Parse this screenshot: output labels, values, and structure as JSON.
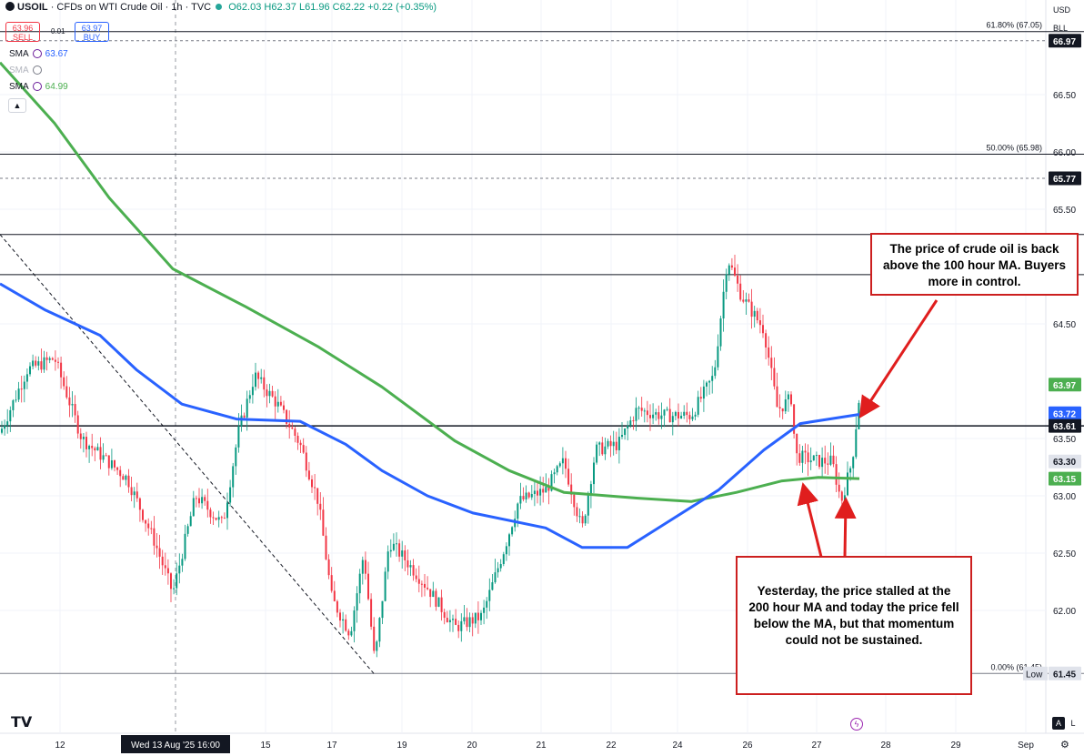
{
  "header": {
    "symbol": "USOIL",
    "description": "· CFDs on WTI Crude Oil · 1h · TVC",
    "open": "O62.03",
    "high": "H62.37",
    "low": "L61.96",
    "close": "C62.22",
    "change": "+0.22 (+0.35%)"
  },
  "trade": {
    "sell_price": "63.96",
    "sell_label": "SELL",
    "spread": "0.01",
    "buy_price": "63.97",
    "buy_label": "BUY"
  },
  "indicators": [
    {
      "name": "SMA",
      "value": "63.67",
      "color": "#2962ff"
    },
    {
      "name": "SMA",
      "value": "",
      "color": "#b2b5be"
    },
    {
      "name": "SMA",
      "value": "64.99",
      "color": "#4caf50"
    }
  ],
  "axis_controls": {
    "currency": "USD",
    "unit": "BLL"
  },
  "annotations": {
    "top": "The  price of crude oil is back above the 100 hour MA. Buyers more in control.",
    "bottom": "Yesterday, the price stalled at the 200 hour MA and today the price fell below the MA, but that momentum could not be sustained."
  },
  "bottom_buttons": {
    "log": "L",
    "auto": "A"
  },
  "chart_data": {
    "type": "candlestick",
    "ylim": [
      61.2,
      67.3
    ],
    "y_ticks": [
      "66.50",
      "66.00",
      "65.50",
      "64.50",
      "63.50",
      "63.00",
      "62.50",
      "62.00"
    ],
    "x_ticks": [
      "12",
      "15",
      "17",
      "19",
      "20",
      "21",
      "22",
      "24",
      "26",
      "27",
      "28",
      "29",
      "Sep"
    ],
    "crosshair_x_label": "Wed 13 Aug '25    16:00",
    "price_labels": [
      {
        "value": 66.97,
        "text": "66.97",
        "style": "dark"
      },
      {
        "value": 65.77,
        "text": "65.77",
        "style": "dark"
      },
      {
        "value": 63.97,
        "text": "63.97",
        "style": "green"
      },
      {
        "value": 63.72,
        "text": "63.72",
        "style": "blue"
      },
      {
        "value": 63.61,
        "text": "63.61",
        "style": "dark"
      },
      {
        "value": 63.3,
        "text": "63.30",
        "style": "light"
      },
      {
        "value": 63.15,
        "text": "63.15",
        "style": "green"
      },
      {
        "value": 61.45,
        "text": "61.45",
        "style": "light",
        "prefix": "Low"
      }
    ],
    "horizontal_lines": [
      {
        "value": 67.05,
        "label": "61.80% (67.05)"
      },
      {
        "value": 65.98,
        "label": "50.00% (65.98)"
      },
      {
        "value": 65.28,
        "label": ""
      },
      {
        "value": 64.93,
        "label": ""
      },
      {
        "value": 63.61,
        "label": ""
      },
      {
        "value": 61.45,
        "label": "0.00% (61.45)"
      }
    ],
    "dashed_lines": [
      66.97,
      65.77
    ],
    "series": [
      {
        "name": "SMA",
        "color": "#4caf50",
        "points": [
          [
            0,
            66.78
          ],
          [
            60,
            66.25
          ],
          [
            120,
            65.6
          ],
          [
            190,
            64.98
          ],
          [
            270,
            64.65
          ],
          [
            350,
            64.3
          ],
          [
            420,
            63.95
          ],
          [
            500,
            63.48
          ],
          [
            560,
            63.22
          ],
          [
            620,
            63.03
          ],
          [
            700,
            62.98
          ],
          [
            760,
            62.95
          ],
          [
            810,
            63.03
          ],
          [
            860,
            63.13
          ],
          [
            900,
            63.16
          ],
          [
            945,
            63.15
          ]
        ]
      },
      {
        "name": "SMA",
        "color": "#2962ff",
        "points": [
          [
            0,
            64.85
          ],
          [
            50,
            64.62
          ],
          [
            110,
            64.4
          ],
          [
            150,
            64.1
          ],
          [
            200,
            63.8
          ],
          [
            260,
            63.67
          ],
          [
            330,
            63.65
          ],
          [
            380,
            63.45
          ],
          [
            420,
            63.22
          ],
          [
            470,
            63.0
          ],
          [
            520,
            62.85
          ],
          [
            600,
            62.72
          ],
          [
            640,
            62.55
          ],
          [
            690,
            62.55
          ],
          [
            730,
            62.75
          ],
          [
            790,
            63.05
          ],
          [
            840,
            63.4
          ],
          [
            880,
            63.63
          ],
          [
            945,
            63.71
          ]
        ]
      }
    ],
    "price_path": [
      [
        0,
        63.55
      ],
      [
        30,
        64.1
      ],
      [
        60,
        64.2
      ],
      [
        90,
        63.5
      ],
      [
        140,
        63.15
      ],
      [
        170,
        62.6
      ],
      [
        190,
        62.15
      ],
      [
        215,
        63.0
      ],
      [
        245,
        62.75
      ],
      [
        262,
        63.55
      ],
      [
        280,
        64.05
      ],
      [
        305,
        63.8
      ],
      [
        330,
        63.45
      ],
      [
        350,
        62.95
      ],
      [
        365,
        62.1
      ],
      [
        385,
        61.8
      ],
      [
        400,
        62.5
      ],
      [
        412,
        61.55
      ],
      [
        428,
        62.6
      ],
      [
        445,
        62.45
      ],
      [
        470,
        62.2
      ],
      [
        500,
        61.85
      ],
      [
        530,
        61.95
      ],
      [
        555,
        62.55
      ],
      [
        570,
        62.95
      ],
      [
        600,
        63.05
      ],
      [
        620,
        63.3
      ],
      [
        640,
        62.7
      ],
      [
        655,
        63.4
      ],
      [
        680,
        63.45
      ],
      [
        700,
        63.75
      ],
      [
        730,
        63.7
      ],
      [
        760,
        63.7
      ],
      [
        785,
        64.05
      ],
      [
        800,
        65.08
      ],
      [
        815,
        64.75
      ],
      [
        840,
        64.45
      ],
      [
        855,
        63.75
      ],
      [
        870,
        63.85
      ],
      [
        875,
        63.35
      ],
      [
        900,
        63.3
      ],
      [
        915,
        63.3
      ],
      [
        925,
        62.95
      ],
      [
        937,
        63.3
      ],
      [
        946,
        63.95
      ]
    ],
    "trendline": {
      "from": [
        0,
        65.28
      ],
      "to": [
        411,
        61.45
      ]
    }
  }
}
